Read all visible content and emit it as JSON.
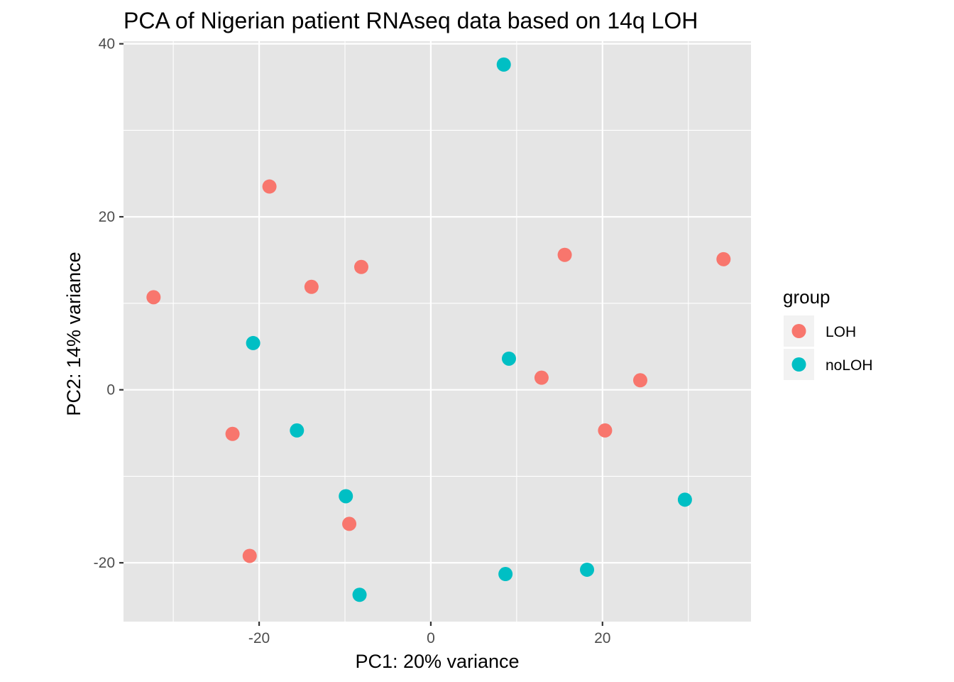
{
  "chart_data": {
    "type": "scatter",
    "title": "PCA of Nigerian patient RNAseq data based on 14q LOH",
    "xlabel": "PC1: 20% variance",
    "ylabel": "PC2: 14% variance",
    "xlim": [
      -35.8,
      37.3
    ],
    "ylim": [
      -26.8,
      40.3
    ],
    "x_ticks": [
      -20,
      0,
      20
    ],
    "x_tick_labels": [
      "-20",
      "0",
      "20"
    ],
    "y_ticks": [
      -20,
      0,
      20,
      40
    ],
    "y_tick_labels": [
      "-20",
      "0",
      "20",
      "40"
    ],
    "grid": true,
    "legend": {
      "title": "group",
      "position": "right"
    },
    "series": [
      {
        "name": "LOH",
        "color": "#F8766D",
        "points": [
          {
            "x": -32.3,
            "y": 10.7
          },
          {
            "x": -18.8,
            "y": 23.5
          },
          {
            "x": -13.9,
            "y": 11.9
          },
          {
            "x": -8.1,
            "y": 14.2
          },
          {
            "x": -23.1,
            "y": -5.1
          },
          {
            "x": -21.1,
            "y": -19.2
          },
          {
            "x": -9.5,
            "y": -15.5
          },
          {
            "x": 12.9,
            "y": 1.4
          },
          {
            "x": 15.6,
            "y": 15.6
          },
          {
            "x": 24.4,
            "y": 1.1
          },
          {
            "x": 20.3,
            "y": -4.7
          },
          {
            "x": 34.1,
            "y": 15.1
          }
        ]
      },
      {
        "name": "noLOH",
        "color": "#00BFC4",
        "points": [
          {
            "x": 8.5,
            "y": 37.6
          },
          {
            "x": -20.7,
            "y": 5.4
          },
          {
            "x": 9.1,
            "y": 3.6
          },
          {
            "x": -15.6,
            "y": -4.7
          },
          {
            "x": -9.9,
            "y": -12.3
          },
          {
            "x": -8.3,
            "y": -23.7
          },
          {
            "x": 8.7,
            "y": -21.3
          },
          {
            "x": 18.2,
            "y": -20.8
          },
          {
            "x": 29.6,
            "y": -12.7
          }
        ]
      }
    ]
  }
}
